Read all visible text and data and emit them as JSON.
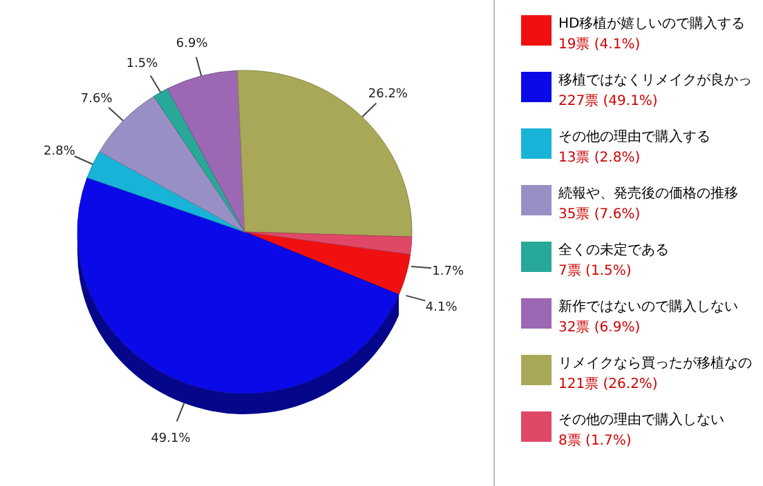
{
  "chart_data": {
    "type": "pie",
    "categories": [
      "HD移植が嬉しいので購入する",
      "移植ではなくリメイクが良かっ",
      "その他の理由で購入する",
      "続報や、発売後の価格の推移",
      "全くの未定である",
      "新作ではないので購入しない",
      "リメイクなら買ったが移植なの",
      "その他の理由で購入しない"
    ],
    "values": [
      19,
      227,
      13,
      35,
      7,
      32,
      121,
      8
    ],
    "colors": [
      "#f01010",
      "#0a0ae8",
      "#18b4d8",
      "#9890c4",
      "#28a898",
      "#9c68b4",
      "#a8a858",
      "#e04868"
    ],
    "value_labels": [
      "19票 (4.1%)",
      "227票 (49.1%)",
      "13票 (2.8%)",
      "35票 (7.6%)",
      "7票 (1.5%)",
      "32票 (6.9%)",
      "121票 (26.2%)",
      "8票 (1.7%)"
    ],
    "annotations": [
      "4.1%",
      "49.1%",
      "2.8%",
      "7.6%",
      "1.5%",
      "6.9%",
      "26.2%",
      "1.7%"
    ],
    "legend": "right"
  }
}
